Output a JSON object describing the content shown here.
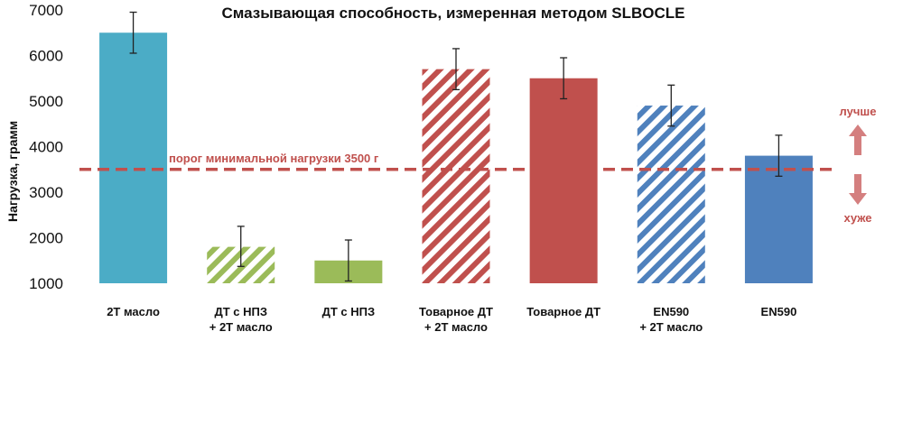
{
  "chart_data": {
    "type": "bar",
    "title": "Смазывающая способность, измеренная методом SLBOCLE",
    "ylabel": "Нагрузка, грамм",
    "xlabel": "",
    "ylim": [
      1000,
      7000
    ],
    "yticks": [
      1000,
      2000,
      3000,
      4000,
      5000,
      6000,
      7000
    ],
    "grid": false,
    "categories": [
      [
        "2T масло"
      ],
      [
        "ДТ с НПЗ",
        "+ 2T масло"
      ],
      [
        "ДТ с НПЗ"
      ],
      [
        "Товарное ДТ",
        "+ 2T масло"
      ],
      [
        "Товарное ДТ"
      ],
      [
        "EN590",
        "+ 2T масло"
      ],
      [
        "EN590"
      ]
    ],
    "values": [
      6500,
      1800,
      1500,
      5700,
      5500,
      4900,
      3800
    ],
    "error_low": [
      6050,
      1370,
      1050,
      5250,
      5050,
      4450,
      3350
    ],
    "error_high": [
      6950,
      2250,
      1950,
      6150,
      5950,
      5350,
      4250
    ],
    "bars": [
      {
        "color": "#4bacc6",
        "pattern": "solid"
      },
      {
        "color": "#9bbb59",
        "pattern": "hatched"
      },
      {
        "color": "#9bbb59",
        "pattern": "solid"
      },
      {
        "color": "#c0504d",
        "pattern": "hatched"
      },
      {
        "color": "#c0504d",
        "pattern": "solid"
      },
      {
        "color": "#4f81bd",
        "pattern": "hatched"
      },
      {
        "color": "#4f81bd",
        "pattern": "solid"
      }
    ],
    "threshold": {
      "value": 3500,
      "label": "порог минимальной нагрузки 3500 г",
      "color": "#c0504d"
    },
    "annotations": {
      "better": "лучше",
      "worse": "хуже",
      "color": "#c0504d",
      "arrow_color": "#d47f7f"
    }
  }
}
